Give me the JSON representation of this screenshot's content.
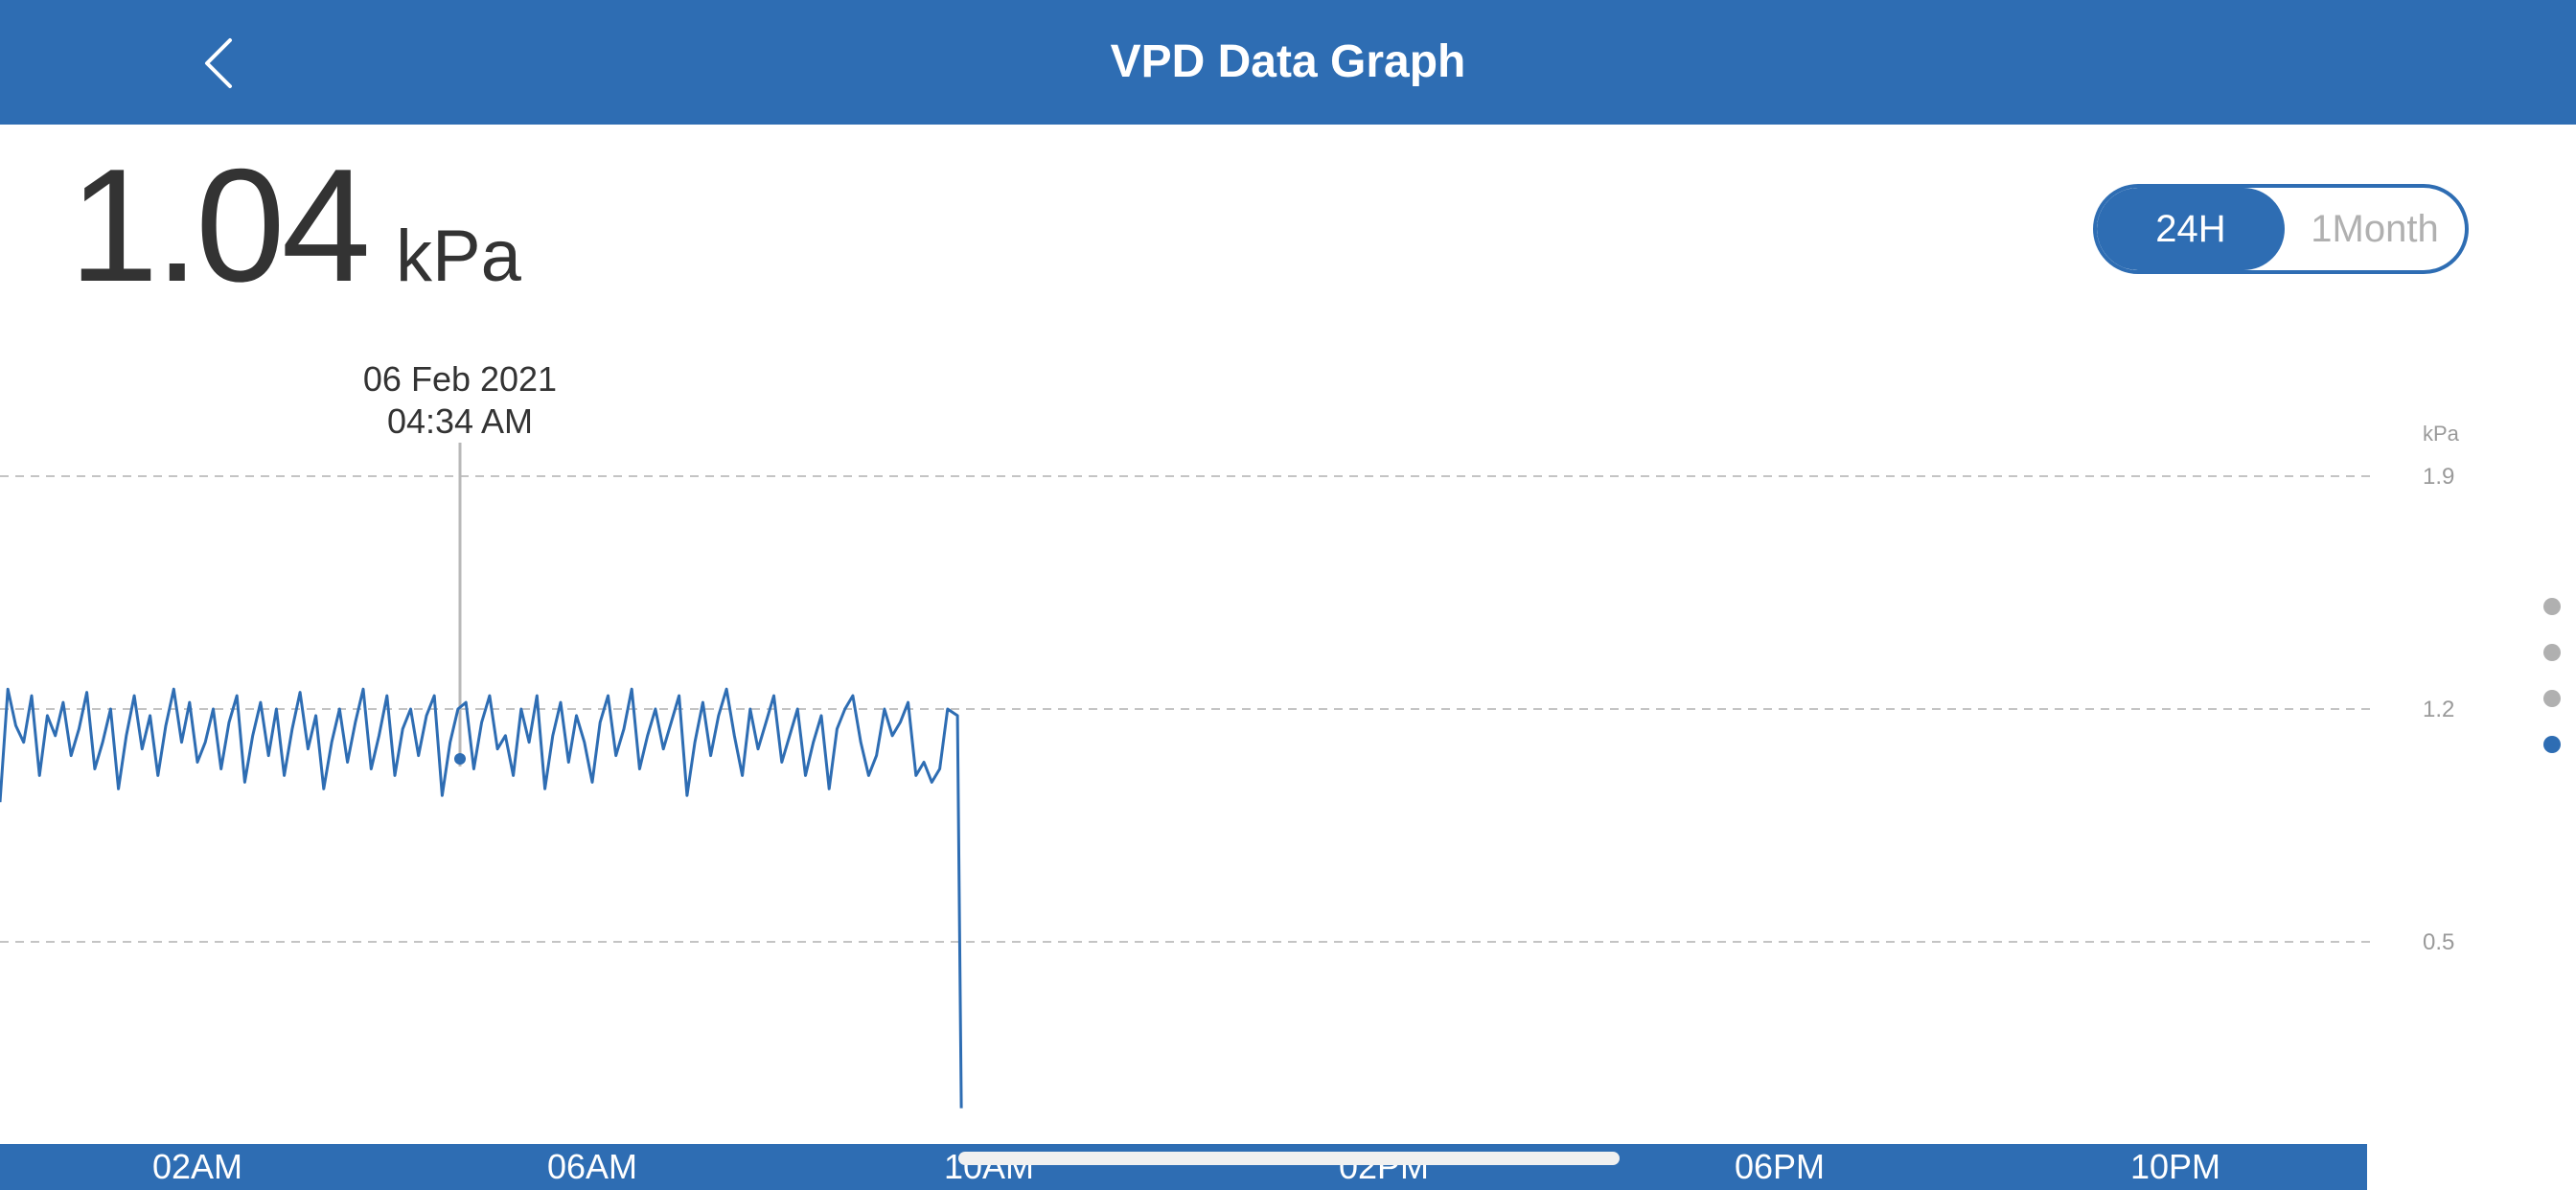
{
  "header": {
    "title": "VPD Data Graph",
    "back_icon": "chevron-left-icon"
  },
  "reading": {
    "value": "1.04",
    "unit": "kPa"
  },
  "range_toggle": {
    "options": [
      "24H",
      "1Month"
    ],
    "selected": "24H"
  },
  "tooltip": {
    "date": "06 Feb 2021",
    "time": "04:34 AM"
  },
  "page_indicator": {
    "count": 4,
    "active_index": 3
  },
  "colors": {
    "accent": "#2e6db3",
    "text": "#333333",
    "muted": "#b0b0b0"
  },
  "chart_data": {
    "type": "line",
    "unit_label": "kPa",
    "y_ticks": [
      "1.9",
      "1.2",
      "0.5"
    ],
    "x_ticks": [
      "02AM",
      "06AM",
      "10AM",
      "02PM",
      "06PM",
      "10PM"
    ],
    "ylim": [
      0.0,
      1.9
    ],
    "grid": true,
    "series": [
      {
        "x": [
          0.0,
          0.08,
          0.16,
          0.24,
          0.32,
          0.4,
          0.48,
          0.56,
          0.64,
          0.72,
          0.8,
          0.88,
          0.96,
          1.04,
          1.12,
          1.2,
          1.28,
          1.36,
          1.44,
          1.52,
          1.6,
          1.68,
          1.76,
          1.84,
          1.92,
          2.0,
          2.08,
          2.16,
          2.24,
          2.32,
          2.4,
          2.48,
          2.56,
          2.64,
          2.72,
          2.8,
          2.88,
          2.96,
          3.04,
          3.12,
          3.2,
          3.28,
          3.36,
          3.44,
          3.52,
          3.6,
          3.68,
          3.76,
          3.84,
          3.92,
          4.0,
          4.08,
          4.16,
          4.24,
          4.32,
          4.4,
          4.48,
          4.56,
          4.64,
          4.72,
          4.8,
          4.88,
          4.96,
          5.04,
          5.12,
          5.2,
          5.28,
          5.36,
          5.44,
          5.52,
          5.6,
          5.68,
          5.76,
          5.84,
          5.92,
          6.0,
          6.08,
          6.16,
          6.24,
          6.32,
          6.4,
          6.48,
          6.56,
          6.64,
          6.72,
          6.8,
          6.88,
          6.96,
          7.04,
          7.12,
          7.2,
          7.28,
          7.36,
          7.44,
          7.52,
          7.6,
          7.68,
          7.76,
          7.84,
          7.92,
          8.0,
          8.08,
          8.16,
          8.24,
          8.32,
          8.4,
          8.48,
          8.56,
          8.64,
          8.72,
          8.8,
          8.88,
          8.96,
          9.04,
          9.12,
          9.2,
          9.28,
          9.36,
          9.44,
          9.52,
          9.6,
          9.7
        ],
        "y": [
          0.92,
          1.26,
          1.15,
          1.1,
          1.24,
          1.0,
          1.18,
          1.12,
          1.22,
          1.06,
          1.14,
          1.25,
          1.02,
          1.1,
          1.2,
          0.96,
          1.12,
          1.24,
          1.08,
          1.18,
          1.0,
          1.15,
          1.26,
          1.1,
          1.22,
          1.04,
          1.1,
          1.2,
          1.02,
          1.16,
          1.24,
          0.98,
          1.12,
          1.22,
          1.06,
          1.2,
          1.0,
          1.14,
          1.25,
          1.08,
          1.18,
          0.96,
          1.1,
          1.2,
          1.04,
          1.16,
          1.26,
          1.02,
          1.12,
          1.24,
          1.0,
          1.14,
          1.2,
          1.06,
          1.18,
          1.24,
          0.94,
          1.1,
          1.2,
          1.22,
          1.02,
          1.16,
          1.24,
          1.08,
          1.12,
          1.0,
          1.2,
          1.1,
          1.24,
          0.96,
          1.12,
          1.22,
          1.04,
          1.18,
          1.1,
          0.98,
          1.16,
          1.24,
          1.06,
          1.14,
          1.26,
          1.02,
          1.12,
          1.2,
          1.08,
          1.16,
          1.24,
          0.94,
          1.1,
          1.22,
          1.06,
          1.18,
          1.26,
          1.12,
          1.0,
          1.2,
          1.08,
          1.16,
          1.24,
          1.04,
          1.12,
          1.2,
          1.0,
          1.1,
          1.18,
          0.96,
          1.14,
          1.2,
          1.24,
          1.1,
          1.0,
          1.06,
          1.2,
          1.12,
          1.16,
          1.22,
          1.0,
          1.04,
          0.98,
          1.02,
          1.2,
          1.18
        ]
      }
    ],
    "drop_to": 0.0
  }
}
